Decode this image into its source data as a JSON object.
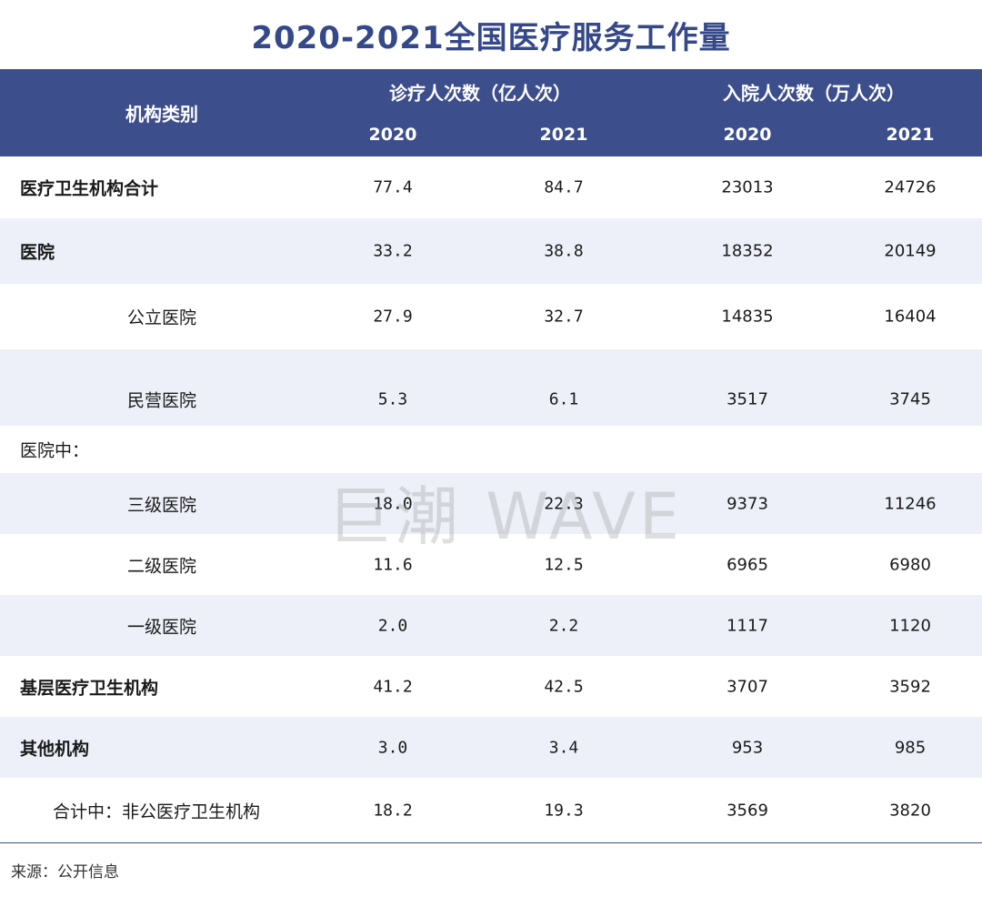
{
  "title": "2020-2021全国医疗服务工作量",
  "watermark": "巨潮 WAVE",
  "source": "来源：公开信息",
  "colors": {
    "header_bg": "#3d4e8c",
    "title": "#34488a",
    "row_shade": "#edf0f8"
  },
  "chart_data": {
    "type": "table",
    "title": "2020-2021全国医疗服务工作量",
    "header": {
      "category_label": "机构类别",
      "groups": [
        "诊疗人次数（亿人次）",
        "入院人次数（万人次）"
      ],
      "years": [
        "2020",
        "2021",
        "2020",
        "2021"
      ]
    },
    "rows": [
      {
        "label": "医疗卫生机构合计",
        "values": [
          "77.4",
          "84.7",
          "23013",
          "24726"
        ]
      },
      {
        "label": "医院",
        "values": [
          "33.2",
          "38.8",
          "18352",
          "20149"
        ]
      },
      {
        "label": "公立医院",
        "values": [
          "27.9",
          "32.7",
          "14835",
          "16404"
        ]
      },
      {
        "label": "民营医院",
        "values": [
          "5.3",
          "6.1",
          "3517",
          "3745"
        ]
      },
      {
        "label": "医院中：",
        "values": [
          "",
          "",
          "",
          ""
        ]
      },
      {
        "label": "三级医院",
        "values": [
          "18.0",
          "22.3",
          "9373",
          "11246"
        ]
      },
      {
        "label": "二级医院",
        "values": [
          "11.6",
          "12.5",
          "6965",
          "6980"
        ]
      },
      {
        "label": "一级医院",
        "values": [
          "2.0",
          "2.2",
          "1117",
          "1120"
        ]
      },
      {
        "label": "基层医疗卫生机构",
        "values": [
          "41.2",
          "42.5",
          "3707",
          "3592"
        ]
      },
      {
        "label": "其他机构",
        "values": [
          "3.0",
          "3.4",
          "953",
          "985"
        ]
      },
      {
        "label": "合计中：非公医疗卫生机构",
        "values": [
          "18.2",
          "19.3",
          "3569",
          "3820"
        ]
      }
    ]
  }
}
